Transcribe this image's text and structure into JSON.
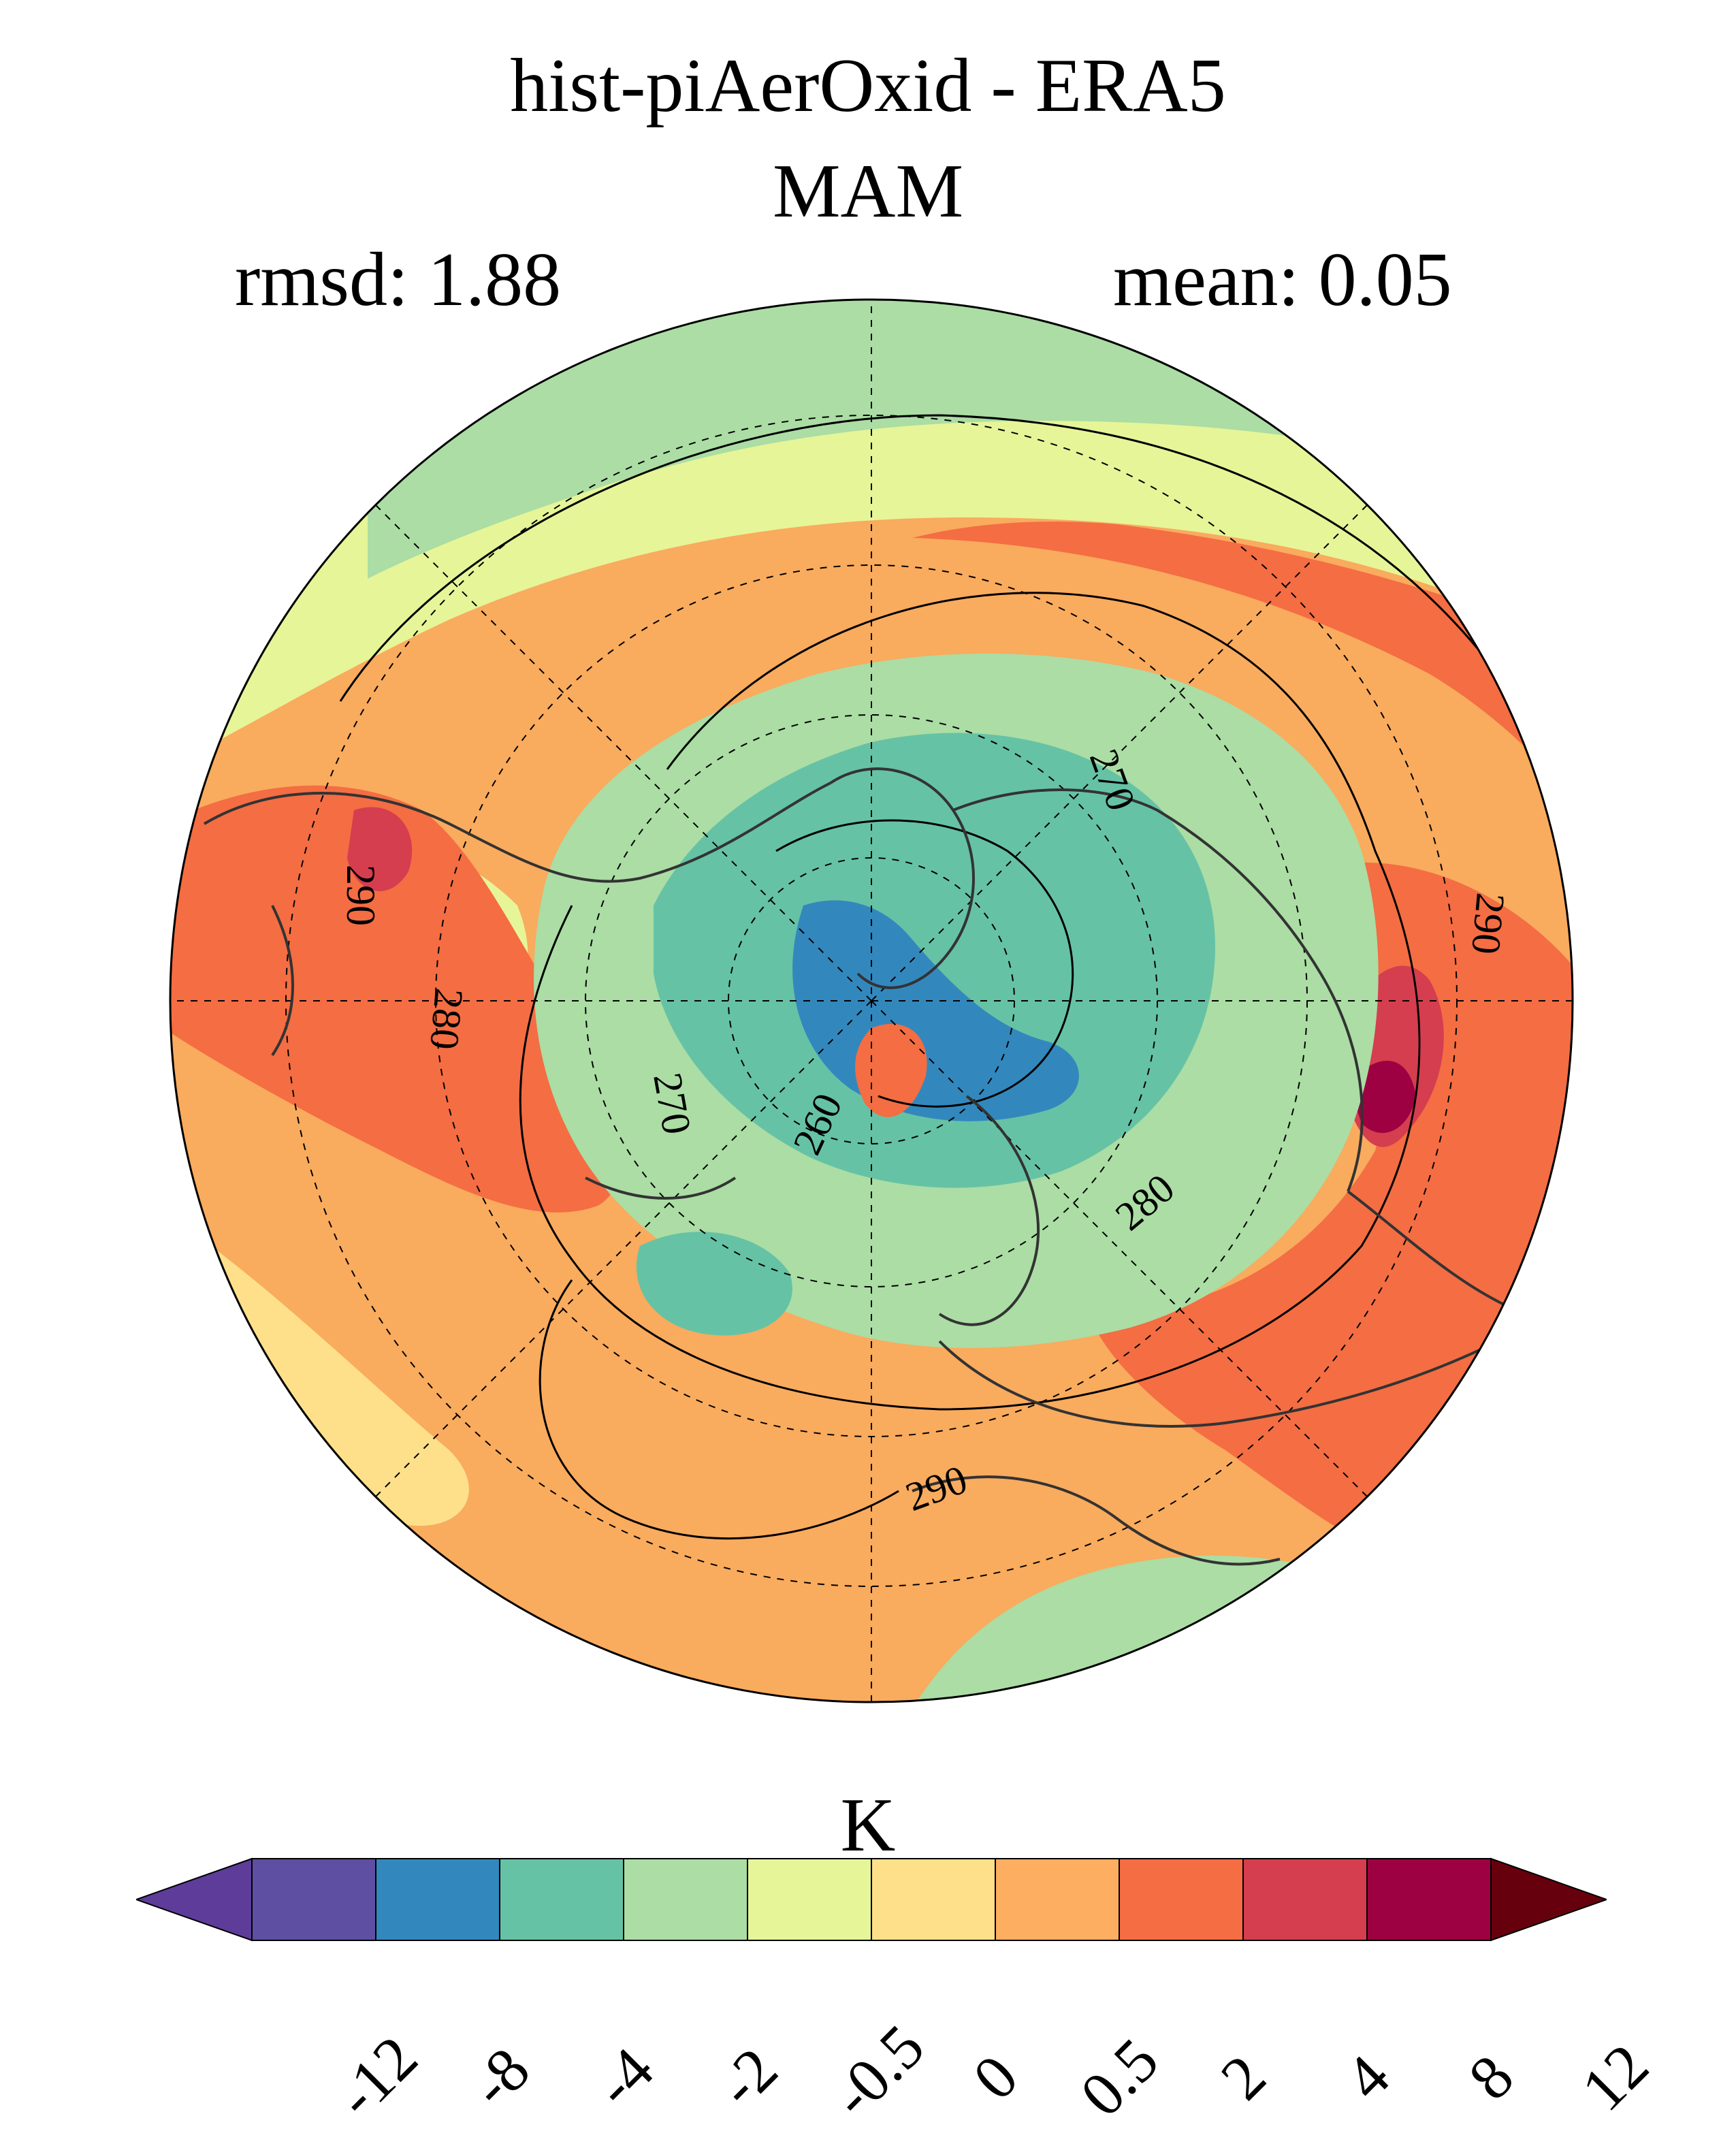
{
  "header": {
    "title": "hist-piAerOxid - ERA5",
    "season": "MAM",
    "rmsd": "rmsd: 1.88",
    "mean": "mean: 0.05"
  },
  "map": {
    "projection": "north-polar-stereographic",
    "contour_labels": [
      "270",
      "290",
      "280",
      "270",
      "260",
      "280",
      "290",
      "290"
    ],
    "field_colors": {
      "land_ocean_positive": "#f9ab5e",
      "strong_positive": "#f46d43",
      "very_positive": "#d53e4f",
      "near_zero": "#e6f598",
      "slight_negative": "#abdda4",
      "negative": "#66c2a5",
      "strong_negative": "#3288bd",
      "coast": "#333333"
    }
  },
  "colorbar": {
    "unit": "K",
    "colors": [
      "#5e3c99",
      "#5e4fa2",
      "#3288bd",
      "#66c2a5",
      "#abdda4",
      "#e6f598",
      "#fee08b",
      "#fdae61",
      "#f46d43",
      "#d53e4f",
      "#9e0142",
      "#67000d"
    ],
    "ticks": [
      "-12",
      "-8",
      "-4",
      "-2",
      "-0.5",
      "0",
      "0.5",
      "2",
      "4",
      "8",
      "12"
    ]
  }
}
